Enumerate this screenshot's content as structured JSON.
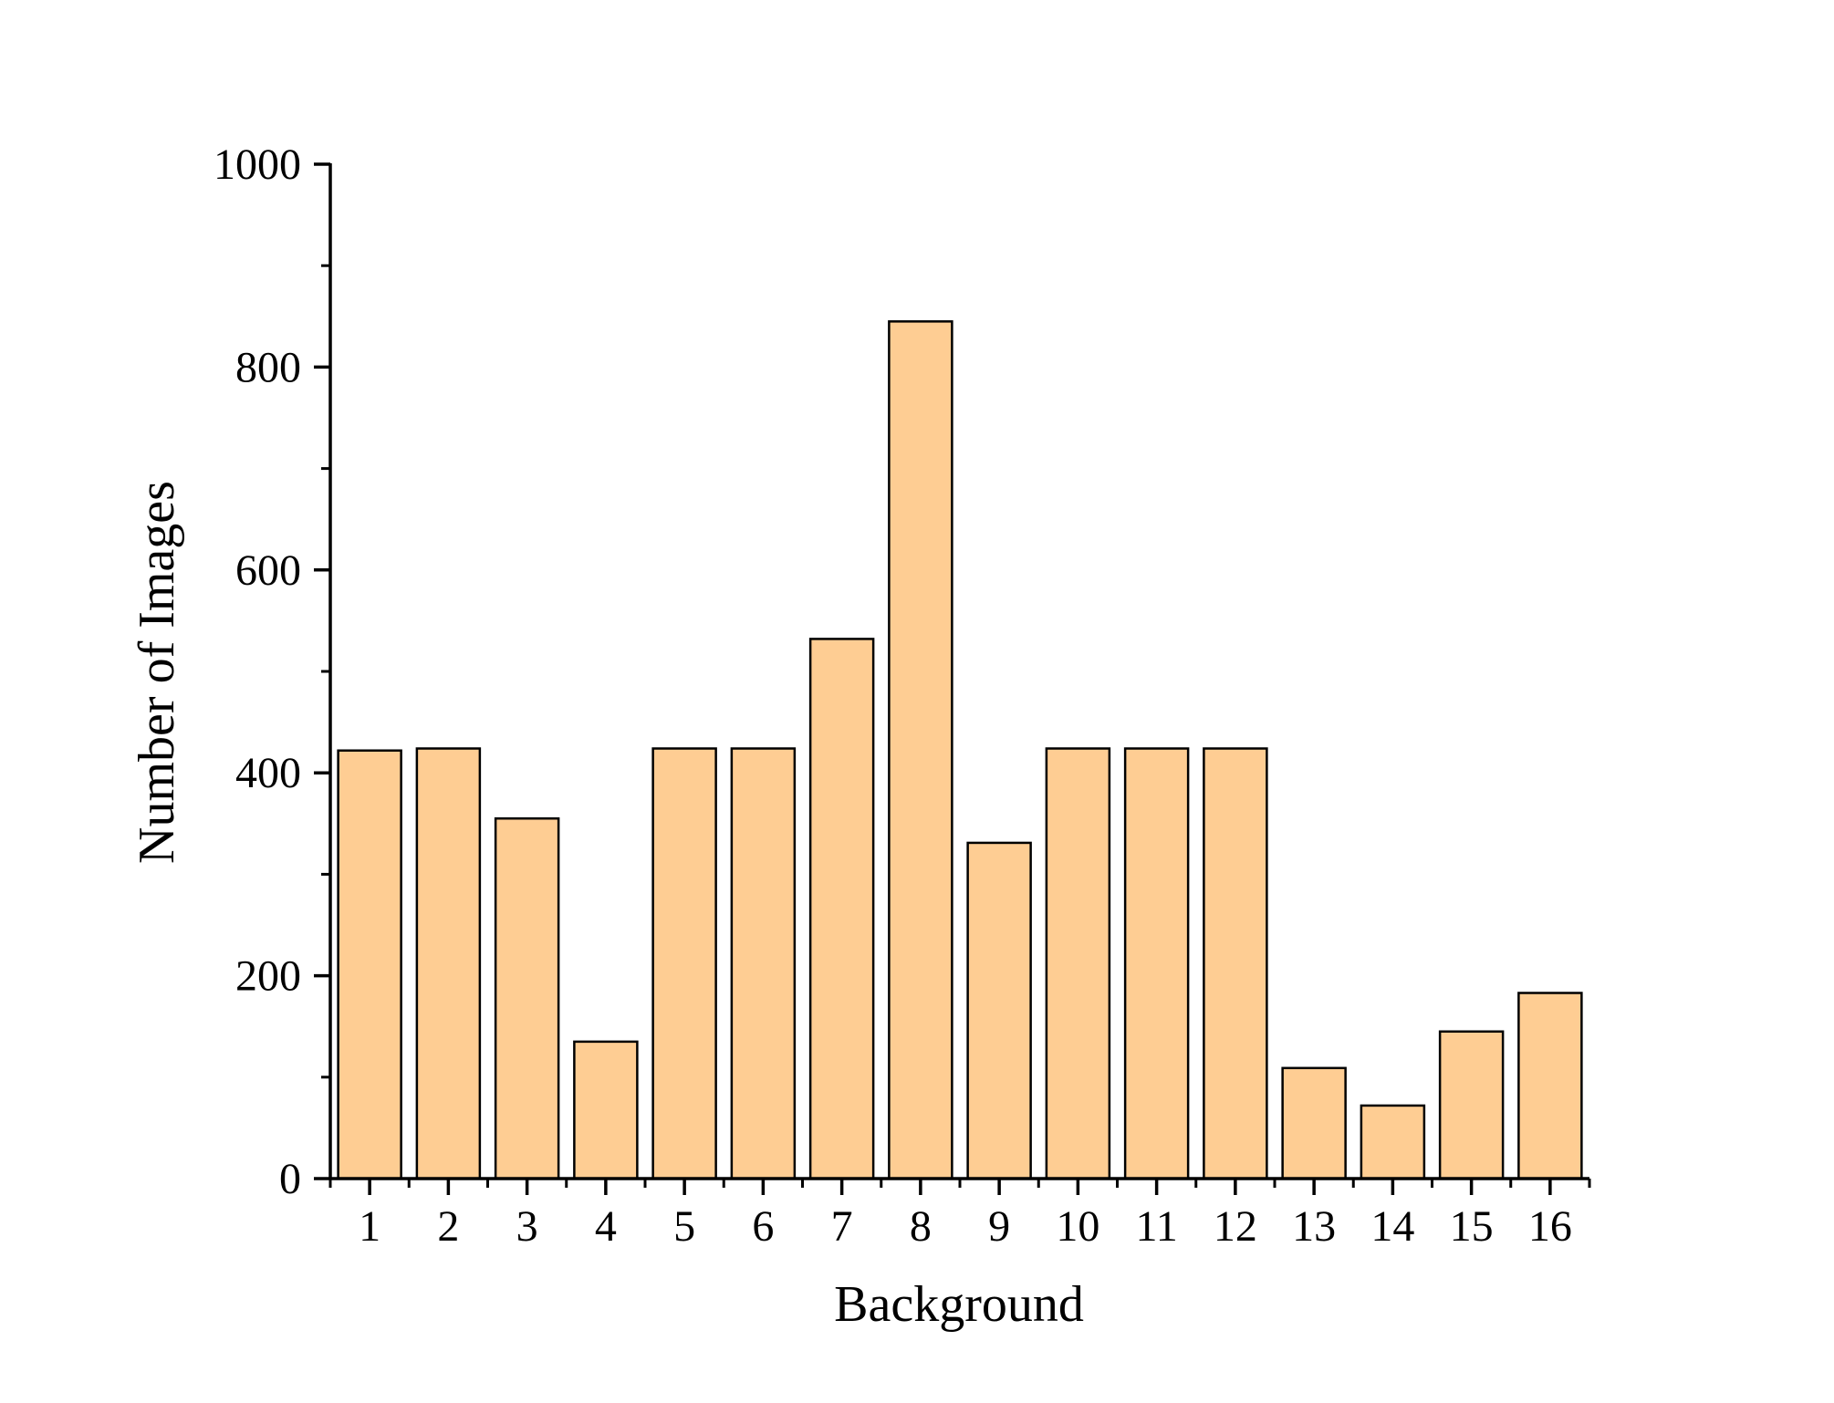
{
  "chart_data": {
    "type": "bar",
    "xlabel": "Background",
    "ylabel": "Number of Images",
    "categories": [
      "1",
      "2",
      "3",
      "4",
      "5",
      "6",
      "7",
      "8",
      "9",
      "10",
      "11",
      "12",
      "13",
      "14",
      "15",
      "16"
    ],
    "values": [
      422,
      424,
      355,
      135,
      424,
      424,
      532,
      845,
      331,
      424,
      424,
      424,
      109,
      72,
      145,
      183
    ],
    "ylim": [
      0,
      1000
    ],
    "yticks": [
      0,
      200,
      400,
      600,
      800,
      1000
    ],
    "ytick_labels": [
      "0",
      "200",
      "400",
      "600",
      "800",
      "1000"
    ],
    "grid": false,
    "legend": "none",
    "bar_color": "#FECD93",
    "bar_edge_color": "#000000"
  }
}
